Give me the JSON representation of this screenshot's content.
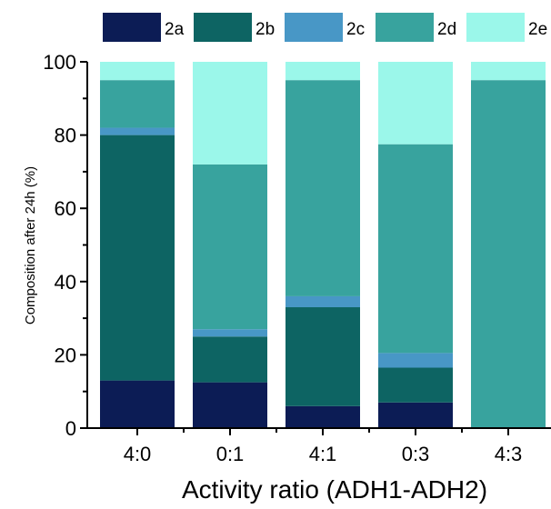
{
  "chart_data": {
    "type": "bar",
    "stacked": true,
    "categories": [
      "4:0",
      "0:1",
      "4:1",
      "0:3",
      "4:3"
    ],
    "series": [
      {
        "name": "2a",
        "color": "#0c1c55",
        "values": [
          13,
          12.5,
          6,
          7,
          0
        ]
      },
      {
        "name": "2b",
        "color": "#0d6463",
        "values": [
          67,
          12.5,
          27,
          9.5,
          0
        ]
      },
      {
        "name": "2c",
        "color": "#4897c6",
        "values": [
          2,
          2,
          3,
          4,
          0
        ]
      },
      {
        "name": "2d",
        "color": "#38a39e",
        "values": [
          13,
          45,
          59,
          57,
          95
        ]
      },
      {
        "name": "2e",
        "color": "#9bf7ea",
        "values": [
          5,
          28,
          5,
          22.5,
          5
        ]
      }
    ],
    "xlabel": "Activity ratio (ADH1-ADH2)",
    "ylabel": "Composition after 24h (%)",
    "ylim": [
      0,
      100
    ],
    "yticks": [
      0,
      20,
      40,
      60,
      80,
      100
    ],
    "grid": false,
    "legend_position": "top"
  }
}
